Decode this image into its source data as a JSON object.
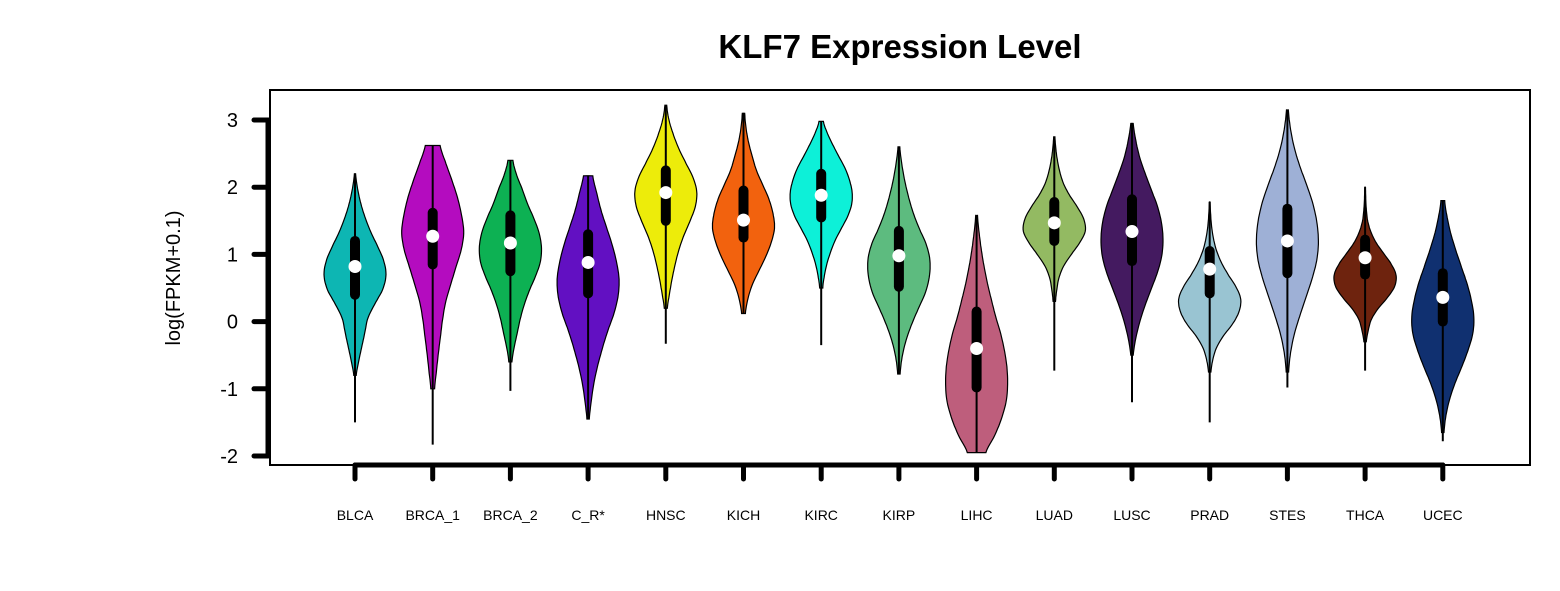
{
  "chart_data": {
    "type": "violin",
    "title": "KLF7 Expression Level",
    "ylabel": "log(FPKM+0.1)",
    "xlabel": "",
    "ylim": [
      -2,
      3
    ],
    "yticks": [
      3,
      2,
      1,
      0,
      -1,
      -2
    ],
    "grid": false,
    "legend": "none",
    "categories": [
      {
        "name": "BLCA",
        "color": "#0DB6B3",
        "violin_min": -0.8,
        "violin_max": 2.2,
        "q1": 0.4,
        "median": 0.82,
        "q3": 1.2,
        "whisker_low": -1.5,
        "whisker_high": 2.2,
        "profile": [
          0.04,
          0.12,
          0.22,
          0.32,
          0.42,
          0.65,
          0.9,
          1.0,
          0.92,
          0.72,
          0.5,
          0.32,
          0.18,
          0.08,
          0.02
        ]
      },
      {
        "name": "BRCA_1",
        "color": "#B40CBF",
        "violin_min": -1.0,
        "violin_max": 2.62,
        "q1": 0.85,
        "median": 1.27,
        "q3": 1.62,
        "whisker_low": -1.83,
        "whisker_high": 2.62,
        "profile": [
          0.06,
          0.12,
          0.18,
          0.25,
          0.32,
          0.42,
          0.58,
          0.75,
          0.92,
          1.0,
          0.93,
          0.8,
          0.62,
          0.42,
          0.24
        ]
      },
      {
        "name": "BRCA_2",
        "color": "#0DB153",
        "violin_min": -0.6,
        "violin_max": 2.4,
        "q1": 0.75,
        "median": 1.17,
        "q3": 1.58,
        "whisker_low": -1.03,
        "whisker_high": 2.4,
        "profile": [
          0.05,
          0.12,
          0.22,
          0.32,
          0.45,
          0.62,
          0.82,
          0.97,
          1.0,
          0.92,
          0.75,
          0.55,
          0.38,
          0.2,
          0.08
        ]
      },
      {
        "name": "C_R*",
        "color": "#6210C2",
        "violin_min": -1.45,
        "violin_max": 2.17,
        "q1": 0.42,
        "median": 0.88,
        "q3": 1.3,
        "whisker_low": -1.45,
        "whisker_high": 2.17,
        "profile": [
          0.04,
          0.1,
          0.18,
          0.3,
          0.45,
          0.62,
          0.82,
          0.96,
          1.0,
          0.92,
          0.78,
          0.6,
          0.42,
          0.28,
          0.15
        ]
      },
      {
        "name": "HNSC",
        "color": "#EDEC0A",
        "violin_min": 0.2,
        "violin_max": 3.22,
        "q1": 1.5,
        "median": 1.92,
        "q3": 2.25,
        "whisker_low": -0.33,
        "whisker_high": 3.22,
        "profile": [
          0.05,
          0.12,
          0.2,
          0.3,
          0.42,
          0.58,
          0.78,
          0.95,
          1.0,
          0.88,
          0.65,
          0.42,
          0.24,
          0.1,
          0.03
        ]
      },
      {
        "name": "KICH",
        "color": "#F2620E",
        "violin_min": 0.12,
        "violin_max": 3.1,
        "q1": 1.25,
        "median": 1.51,
        "q3": 1.95,
        "whisker_low": 0.12,
        "whisker_high": 3.1,
        "profile": [
          0.06,
          0.14,
          0.28,
          0.5,
          0.72,
          0.9,
          1.0,
          0.95,
          0.82,
          0.62,
          0.42,
          0.28,
          0.16,
          0.08,
          0.04
        ]
      },
      {
        "name": "KIRC",
        "color": "#0DF0D8",
        "violin_min": 0.5,
        "violin_max": 2.98,
        "q1": 1.55,
        "median": 1.88,
        "q3": 2.2,
        "whisker_low": -0.35,
        "whisker_high": 2.98,
        "profile": [
          0.05,
          0.1,
          0.18,
          0.3,
          0.45,
          0.65,
          0.85,
          0.98,
          1.0,
          0.92,
          0.78,
          0.58,
          0.38,
          0.2,
          0.07
        ]
      },
      {
        "name": "KIRP",
        "color": "#5DBB7F",
        "violin_min": -0.78,
        "violin_max": 2.6,
        "q1": 0.52,
        "median": 0.98,
        "q3": 1.35,
        "whisker_low": -0.78,
        "whisker_high": 2.6,
        "profile": [
          0.04,
          0.1,
          0.22,
          0.4,
          0.62,
          0.85,
          0.98,
          1.0,
          0.88,
          0.65,
          0.45,
          0.3,
          0.18,
          0.09,
          0.03
        ]
      },
      {
        "name": "LIHC",
        "color": "#BE5E7C",
        "violin_min": -1.95,
        "violin_max": 1.58,
        "q1": -0.98,
        "median": -0.4,
        "q3": 0.15,
        "whisker_low": -1.95,
        "whisker_high": 1.58,
        "profile": [
          0.3,
          0.58,
          0.8,
          0.95,
          1.0,
          0.98,
          0.9,
          0.78,
          0.62,
          0.48,
          0.35,
          0.24,
          0.15,
          0.08,
          0.03
        ]
      },
      {
        "name": "LUAD",
        "color": "#93BA62",
        "violin_min": 0.3,
        "violin_max": 2.75,
        "q1": 1.2,
        "median": 1.47,
        "q3": 1.78,
        "whisker_low": -0.73,
        "whisker_high": 2.75,
        "profile": [
          0.04,
          0.08,
          0.15,
          0.3,
          0.55,
          0.82,
          1.0,
          0.95,
          0.75,
          0.5,
          0.3,
          0.18,
          0.1,
          0.05,
          0.02
        ]
      },
      {
        "name": "LUSC",
        "color": "#441A60",
        "violin_min": -0.5,
        "violin_max": 2.95,
        "q1": 0.9,
        "median": 1.34,
        "q3": 1.82,
        "whisker_low": -1.2,
        "whisker_high": 2.95,
        "profile": [
          0.04,
          0.12,
          0.25,
          0.42,
          0.62,
          0.82,
          0.96,
          1.0,
          0.95,
          0.82,
          0.62,
          0.42,
          0.24,
          0.12,
          0.04
        ]
      },
      {
        "name": "PRAD",
        "color": "#99C4D2",
        "violin_min": -0.75,
        "violin_max": 1.78,
        "q1": 0.42,
        "median": 0.78,
        "q3": 1.05,
        "whisker_low": -1.5,
        "whisker_high": 1.78,
        "profile": [
          0.04,
          0.1,
          0.22,
          0.45,
          0.75,
          0.95,
          1.0,
          0.85,
          0.6,
          0.38,
          0.22,
          0.12,
          0.06,
          0.03,
          0.01
        ]
      },
      {
        "name": "STES",
        "color": "#9EB0D6",
        "violin_min": -0.75,
        "violin_max": 3.15,
        "q1": 0.72,
        "median": 1.2,
        "q3": 1.68,
        "whisker_low": -0.98,
        "whisker_high": 3.15,
        "profile": [
          0.04,
          0.1,
          0.22,
          0.4,
          0.6,
          0.8,
          0.95,
          1.0,
          0.95,
          0.82,
          0.62,
          0.4,
          0.22,
          0.1,
          0.03
        ]
      },
      {
        "name": "THCA",
        "color": "#6E230E",
        "violin_min": -0.3,
        "violin_max": 2.0,
        "q1": 0.7,
        "median": 0.95,
        "q3": 1.22,
        "whisker_low": -0.73,
        "whisker_high": 2.0,
        "profile": [
          0.04,
          0.1,
          0.2,
          0.42,
          0.72,
          0.95,
          1.0,
          0.85,
          0.6,
          0.35,
          0.18,
          0.08,
          0.04,
          0.02,
          0.01
        ]
      },
      {
        "name": "UCEC",
        "color": "#103070",
        "violin_min": -1.65,
        "violin_max": 1.8,
        "q1": 0.0,
        "median": 0.36,
        "q3": 0.72,
        "whisker_low": -1.78,
        "whisker_high": 1.8,
        "profile": [
          0.04,
          0.1,
          0.22,
          0.4,
          0.62,
          0.82,
          0.97,
          1.0,
          0.92,
          0.78,
          0.6,
          0.42,
          0.26,
          0.14,
          0.06
        ]
      }
    ]
  }
}
